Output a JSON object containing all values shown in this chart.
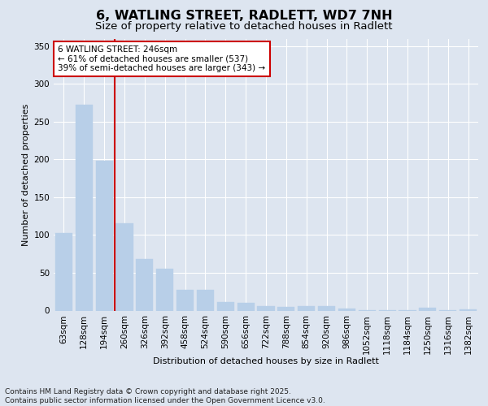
{
  "title1": "6, WATLING STREET, RADLETT, WD7 7NH",
  "title2": "Size of property relative to detached houses in Radlett",
  "xlabel": "Distribution of detached houses by size in Radlett",
  "ylabel": "Number of detached properties",
  "categories": [
    "63sqm",
    "128sqm",
    "194sqm",
    "260sqm",
    "326sqm",
    "392sqm",
    "458sqm",
    "524sqm",
    "590sqm",
    "656sqm",
    "722sqm",
    "788sqm",
    "854sqm",
    "920sqm",
    "986sqm",
    "1052sqm",
    "1118sqm",
    "1184sqm",
    "1250sqm",
    "1316sqm",
    "1382sqm"
  ],
  "values": [
    103,
    272,
    198,
    115,
    68,
    55,
    27,
    27,
    11,
    10,
    6,
    5,
    6,
    6,
    3,
    1,
    1,
    1,
    4,
    1,
    2
  ],
  "bar_color": "#b8cfe8",
  "bar_edgecolor": "#b8cfe8",
  "vline_x_idx": 3,
  "vline_color": "#cc0000",
  "annotation_text": "6 WATLING STREET: 246sqm\n← 61% of detached houses are smaller (537)\n39% of semi-detached houses are larger (343) →",
  "annotation_box_edgecolor": "#cc0000",
  "annotation_box_facecolor": "#ffffff",
  "ylim": [
    0,
    360
  ],
  "yticks": [
    0,
    50,
    100,
    150,
    200,
    250,
    300,
    350
  ],
  "background_color": "#dde5f0",
  "plot_background": "#dde5f0",
  "footer_text": "Contains HM Land Registry data © Crown copyright and database right 2025.\nContains public sector information licensed under the Open Government Licence v3.0.",
  "title1_fontsize": 11.5,
  "title2_fontsize": 9.5,
  "axis_label_fontsize": 8,
  "tick_fontsize": 7.5,
  "annotation_fontsize": 7.5,
  "footer_fontsize": 6.5
}
